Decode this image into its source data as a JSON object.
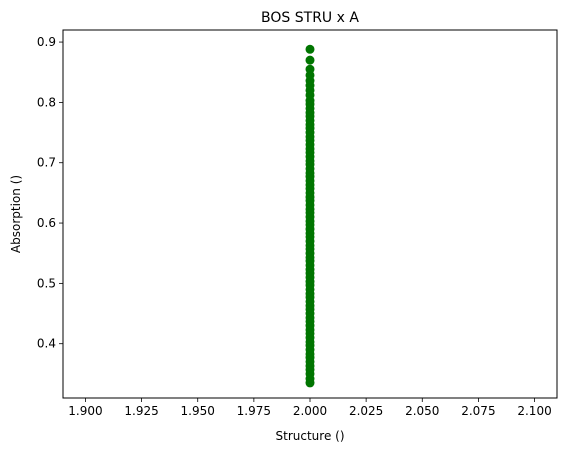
{
  "chart_data": {
    "type": "scatter",
    "title": "BOS STRU x A",
    "xlabel": "Structure ()",
    "ylabel": "Absorption ()",
    "xlim": [
      1.89,
      2.11
    ],
    "ylim": [
      0.31,
      0.92
    ],
    "xticks": [
      1.9,
      1.925,
      1.95,
      1.975,
      2.0,
      2.025,
      2.05,
      2.075,
      2.1
    ],
    "xtick_labels": [
      "1.900",
      "1.925",
      "1.950",
      "1.975",
      "2.000",
      "2.025",
      "2.050",
      "2.075",
      "2.100"
    ],
    "yticks": [
      0.4,
      0.5,
      0.6,
      0.7,
      0.8,
      0.9
    ],
    "ytick_labels": [
      "0.4",
      "0.5",
      "0.6",
      "0.7",
      "0.8",
      "0.9"
    ],
    "marker_color": "#007500",
    "grid": false,
    "series": [
      {
        "x_value": 2.0,
        "y": [
          0.335,
          0.342,
          0.35,
          0.357,
          0.363,
          0.37,
          0.377,
          0.383,
          0.39,
          0.397,
          0.403,
          0.41,
          0.417,
          0.423,
          0.43,
          0.437,
          0.443,
          0.45,
          0.457,
          0.463,
          0.47,
          0.477,
          0.483,
          0.49,
          0.497,
          0.503,
          0.51,
          0.517,
          0.523,
          0.53,
          0.537,
          0.543,
          0.55,
          0.557,
          0.563,
          0.57,
          0.577,
          0.583,
          0.59,
          0.597,
          0.603,
          0.61,
          0.617,
          0.623,
          0.63,
          0.637,
          0.643,
          0.65,
          0.657,
          0.663,
          0.67,
          0.677,
          0.683,
          0.69,
          0.697,
          0.703,
          0.71,
          0.717,
          0.723,
          0.73,
          0.737,
          0.743,
          0.75,
          0.757,
          0.763,
          0.77,
          0.777,
          0.783,
          0.79,
          0.797,
          0.803,
          0.812,
          0.82,
          0.828,
          0.836,
          0.845,
          0.855,
          0.87,
          0.888
        ]
      }
    ]
  }
}
